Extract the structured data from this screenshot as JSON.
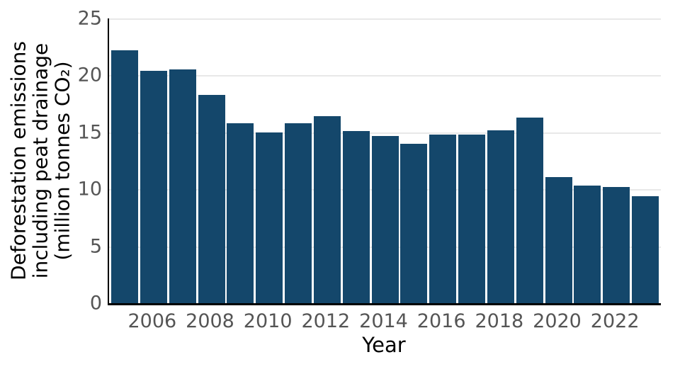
{
  "chart_data": {
    "type": "bar",
    "title": "",
    "xlabel": "Year",
    "ylabel_lines": [
      "Deforestation emissions",
      "including peat drainage",
      "(million tonnes CO₂)"
    ],
    "categories": [
      2005,
      2006,
      2007,
      2008,
      2009,
      2010,
      2011,
      2012,
      2013,
      2014,
      2015,
      2016,
      2017,
      2018,
      2019,
      2020,
      2021,
      2022,
      2023
    ],
    "values": [
      22.2,
      20.4,
      20.5,
      18.3,
      15.8,
      15.0,
      15.8,
      16.4,
      15.1,
      14.7,
      14.0,
      14.8,
      14.8,
      15.2,
      16.3,
      11.1,
      10.3,
      10.2,
      9.4
    ],
    "ylim": [
      0,
      25
    ],
    "yticks": [
      0,
      5,
      10,
      15,
      20,
      25
    ],
    "xtick_labels": [
      "2006",
      "2008",
      "2010",
      "2012",
      "2014",
      "2016",
      "2018",
      "2020",
      "2022"
    ],
    "grid": "horizontal",
    "legend": "none",
    "bar_color": "#14476b",
    "tick_label_color": "#555555",
    "grid_color": "#e8e8e8",
    "axis_color": "#000000"
  }
}
